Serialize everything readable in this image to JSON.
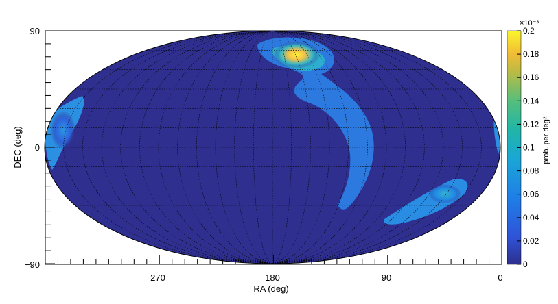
{
  "chart_data": {
    "type": "heatmap",
    "projection": "aitoff/hammer-style sky map",
    "title": "",
    "xlabel": "RA (deg)",
    "ylabel": "DEC (deg)",
    "x_ticks": [
      "270",
      "180",
      "90",
      "0"
    ],
    "y_ticks": [
      "90",
      "0",
      "−90"
    ],
    "x_range": [
      360,
      0
    ],
    "y_range": [
      -90,
      90
    ],
    "colorbar": {
      "label": "prob. per deg²",
      "exponent": "×10⁻³",
      "ticks": [
        "0",
        "0.02",
        "0.04",
        "0.06",
        "0.08",
        "0.1",
        "0.12",
        "0.14",
        "0.16",
        "0.18",
        "0.2"
      ],
      "range": [
        0,
        0.2
      ]
    },
    "grid": true,
    "colors": {
      "background": "#2e2f8e",
      "low": "#3f5bd6",
      "mid": "#1e9ee6",
      "high": "#f5c24a",
      "peak": "#ffef33"
    },
    "hotspots": [
      {
        "ra": 160,
        "dec": 70,
        "value": 0.195
      },
      {
        "ra": 140,
        "dec": 25,
        "value": 0.07
      },
      {
        "ra": 120,
        "dec": -35,
        "value": 0.055
      },
      {
        "ra": 40,
        "dec": -50,
        "value": 0.07
      },
      {
        "ra": 355,
        "dec": 15,
        "value": 0.05
      }
    ]
  }
}
